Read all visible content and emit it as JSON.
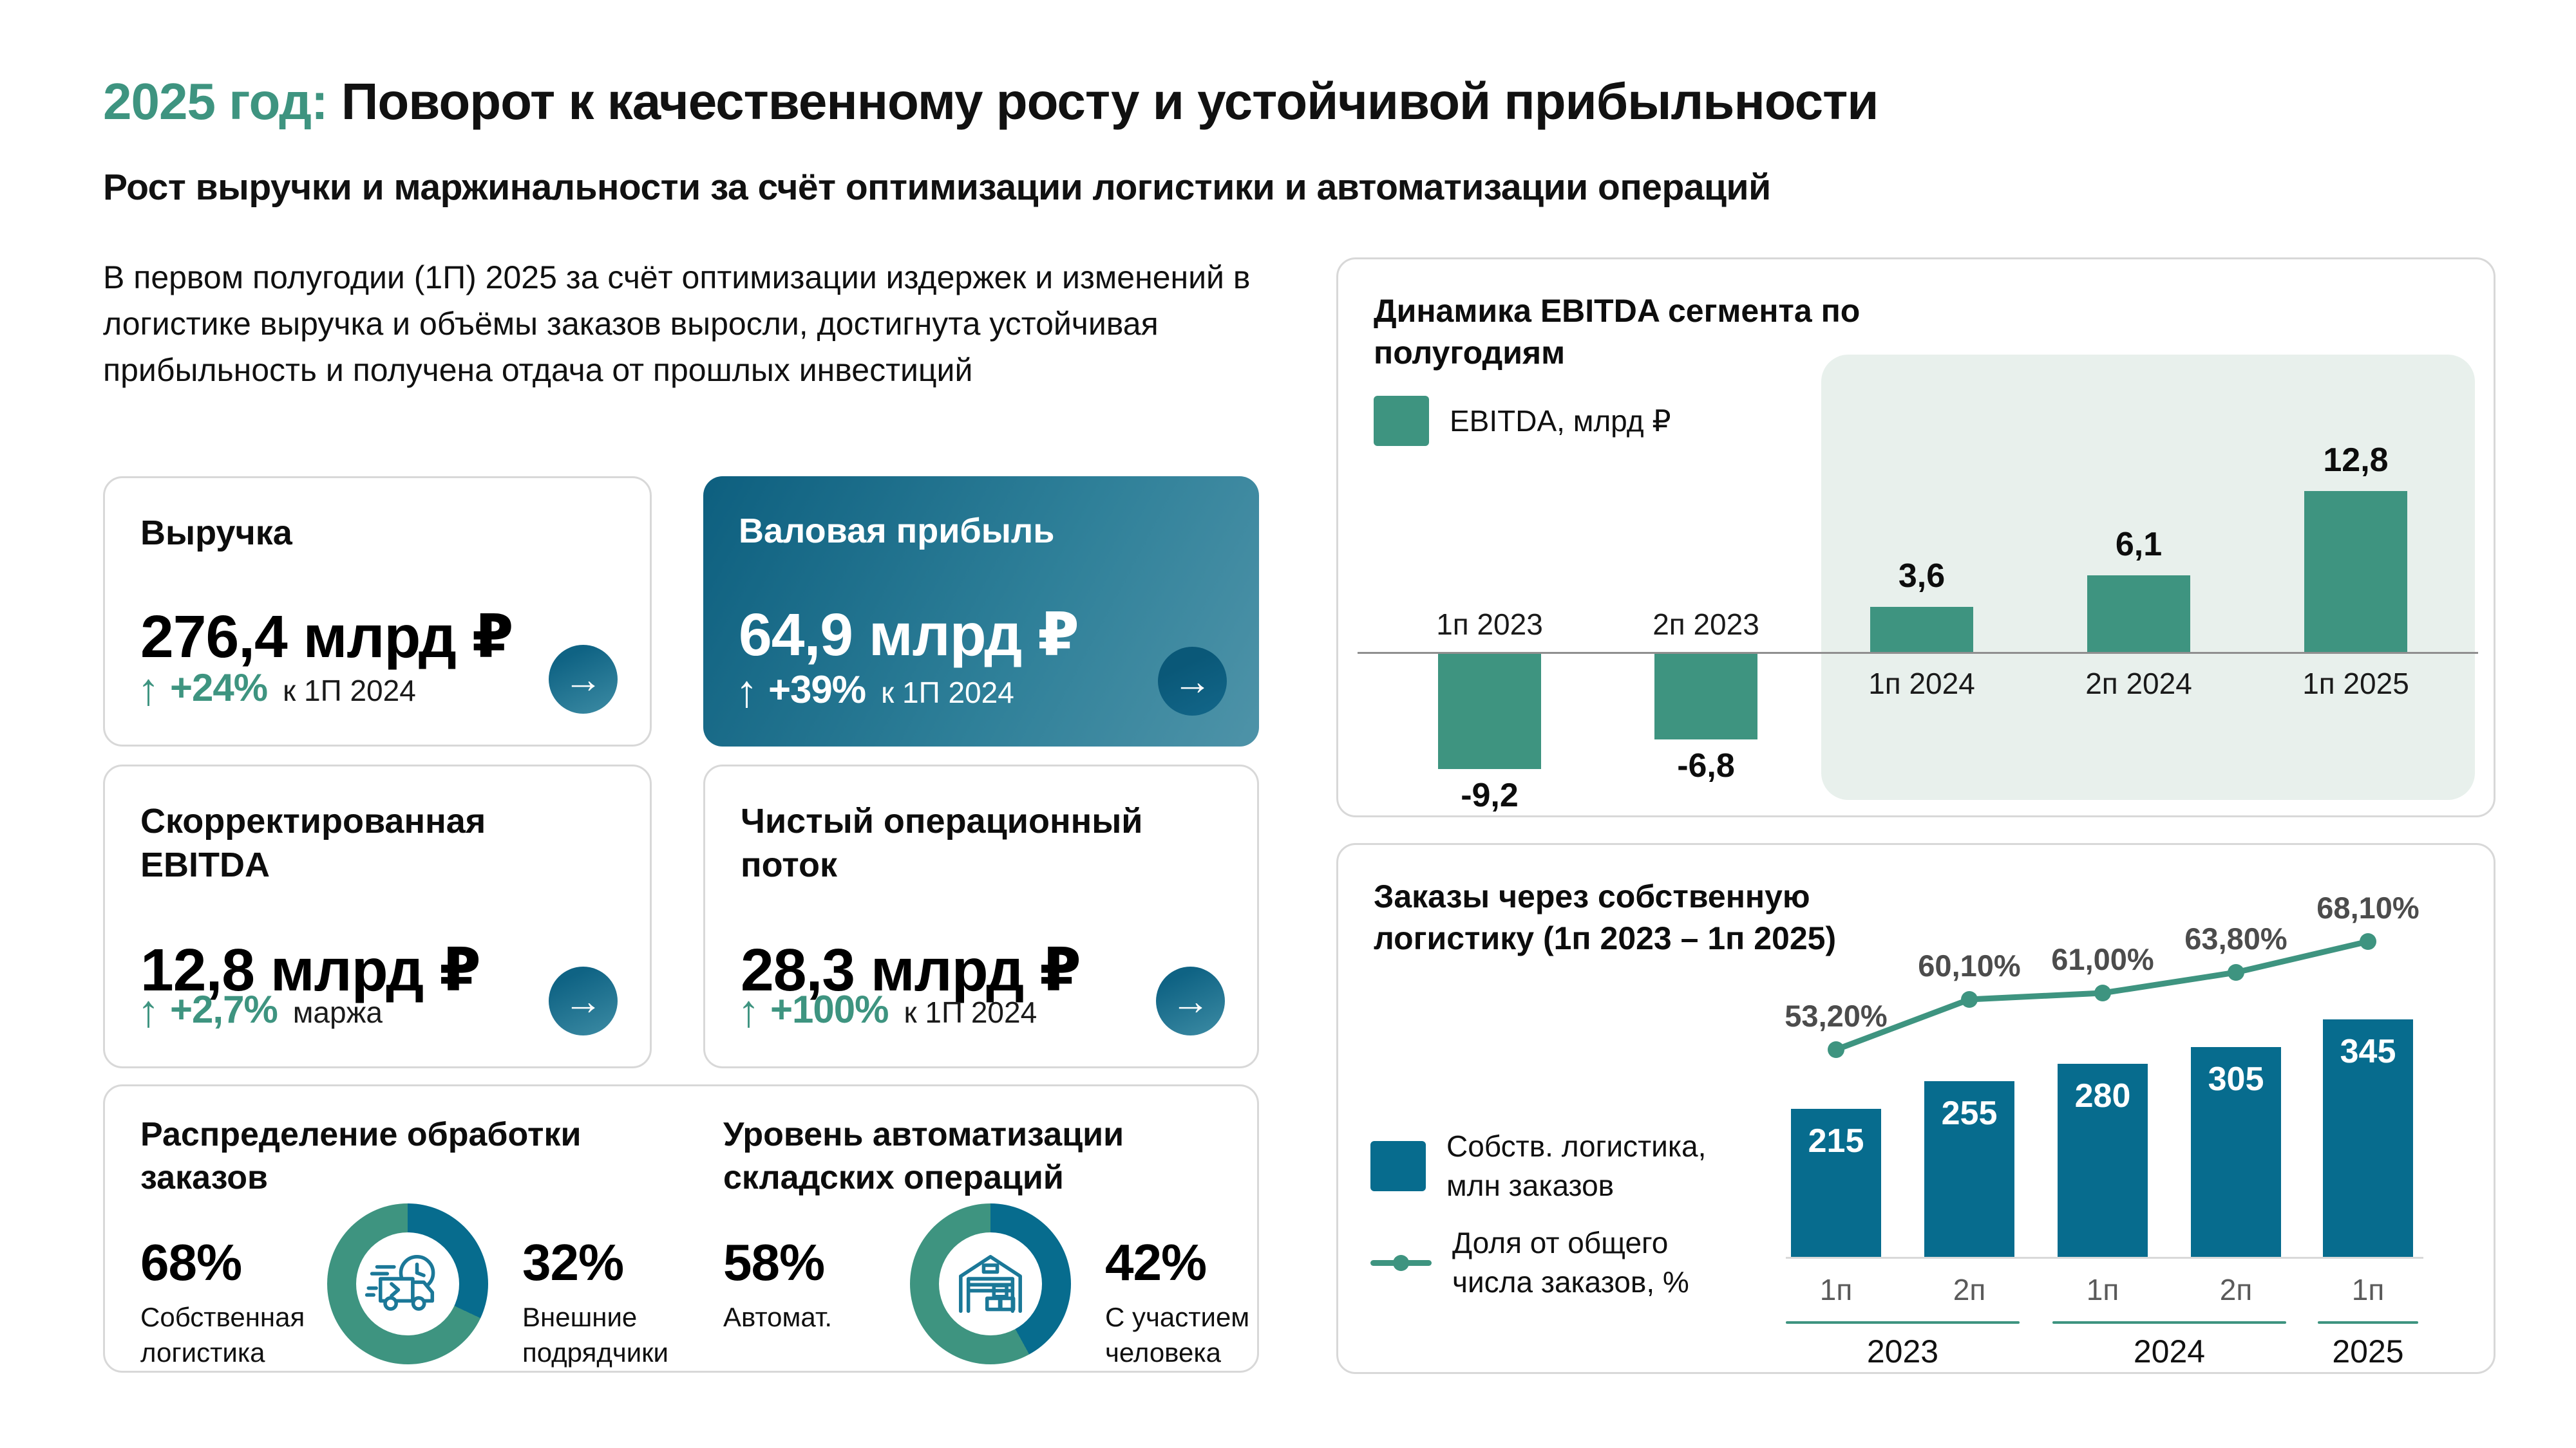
{
  "colors": {
    "accent_green": "#3E9480",
    "teal": "#076C8E",
    "teal_icon": "#1B7898",
    "highlight_bg": "#E8F0EC",
    "axis_gray": "#8F8F8F",
    "label_gray": "#4C4C4C",
    "card_gradient_start": "#0D5F7F",
    "card_gradient_end": "#4E93A8"
  },
  "icons": {
    "arrow_up": "↑",
    "arrow_right": "→"
  },
  "header": {
    "title_accent": "2025 год:",
    "title_rest": " Поворот к качественному росту и устойчивой прибыльности",
    "subtitle": "Рост выручки и маржинальности за счёт оптимизации логистики и автоматизации операций",
    "intro": "В первом полугодии (1П) 2025 за счёт оптимизации издержек и изменений в логистике выручка и объёмы заказов выросли, достигнута устойчивая прибыльность и получена отдача от прошлых инвестиций"
  },
  "kpi": [
    {
      "title": "Выручка",
      "value": "276,4 млрд ₽",
      "delta": "+24%",
      "context": "к 1П 2024"
    },
    {
      "title": "Валовая прибыль",
      "value": "64,9 млрд ₽",
      "delta": "+39%",
      "context": "к 1П 2024"
    },
    {
      "title": "Скорректированная EBITDA",
      "value": "12,8 млрд ₽",
      "delta": "+2,7%",
      "context": "маржа"
    },
    {
      "title": "Чистый операционный поток",
      "value": "28,3 млрд ₽",
      "delta": "+100%",
      "context": "к 1П 2024"
    }
  ],
  "distribution": {
    "left": {
      "title": "Распределение обработки заказов",
      "primary_pct": "68%",
      "primary_label": "Собственная логистика",
      "secondary_pct": "32%",
      "secondary_label": "Внешние подрядчики"
    },
    "right": {
      "title": "Уровень автоматизации складских операций",
      "primary_pct": "58%",
      "primary_label": "Автомат.",
      "secondary_pct": "42%",
      "secondary_label": "С участием человека"
    }
  },
  "chart_data": [
    {
      "type": "bar",
      "title": "Динамика EBITDA сегмента по полугодиям",
      "legend": "EBITDA, млрд ₽",
      "categories": [
        "1п 2023",
        "2п 2023",
        "1п 2024",
        "2п 2024",
        "1п 2025"
      ],
      "values": [
        -9.2,
        -6.8,
        3.6,
        6.1,
        12.8
      ],
      "value_labels": [
        "-9,2",
        "-6,8",
        "3,6",
        "6,1",
        "12,8"
      ],
      "highlight_categories": [
        "1п 2024",
        "2п 2024",
        "1п 2025"
      ],
      "bar_color": "#3E9480",
      "ylim": [
        -10,
        14
      ],
      "grid": false
    },
    {
      "type": "bar+line",
      "title": "Заказы через собственную логистику (1п 2023 – 1п 2025)",
      "categories": [
        "1п",
        "2п",
        "1п",
        "2п",
        "1п"
      ],
      "year_groups": [
        {
          "label": "2023",
          "span": 2
        },
        {
          "label": "2024",
          "span": 2
        },
        {
          "label": "2025",
          "span": 1
        }
      ],
      "series": [
        {
          "name": "Собств. логистика, млн заказов",
          "type": "bar",
          "values": [
            215,
            255,
            280,
            305,
            345
          ],
          "value_labels": [
            "215",
            "255",
            "280",
            "305",
            "345"
          ],
          "color": "#076C8E"
        },
        {
          "name": "Доля от общего числа заказов, %",
          "type": "line",
          "values": [
            53.2,
            60.1,
            61.0,
            63.8,
            68.1
          ],
          "value_labels": [
            "53,20%",
            "60,10%",
            "61,00%",
            "63,80%",
            "68,10%"
          ],
          "color": "#3E9480"
        }
      ],
      "grid": false,
      "legend_position": "left"
    },
    {
      "type": "pie",
      "title": "Распределение обработки заказов",
      "slices": [
        {
          "label": "Внешние подрядчики",
          "value": 32,
          "color": "#076C8E"
        },
        {
          "label": "Собственная логистика",
          "value": 68,
          "color": "#3E9480"
        }
      ]
    },
    {
      "type": "pie",
      "title": "Уровень автоматизации складских операций",
      "slices": [
        {
          "label": "С участием человека",
          "value": 42,
          "color": "#076C8E"
        },
        {
          "label": "Автомат.",
          "value": 58,
          "color": "#3E9480"
        }
      ]
    }
  ]
}
